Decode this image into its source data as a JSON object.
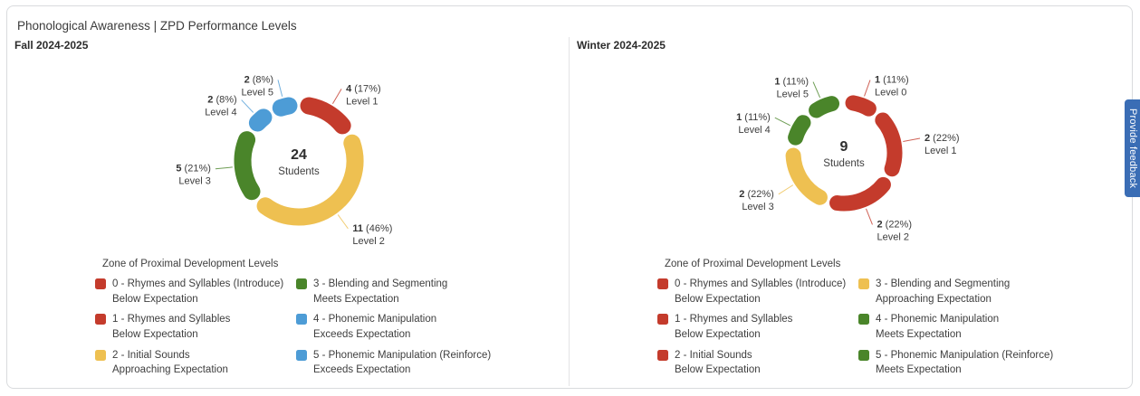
{
  "card": {
    "title": "Phonological Awareness | ZPD Performance Levels"
  },
  "feedback_tab": {
    "label": "Provide feedback",
    "color": "#3a6db5"
  },
  "colors": {
    "red": "#c43b2c",
    "yellow": "#eec051",
    "green": "#4a852a",
    "blue": "#4d9cd6"
  },
  "legend_title": "Zone of Proximal Development Levels",
  "chart_data": [
    {
      "type": "donut",
      "title": "Fall 2024-2025",
      "center_value": "24",
      "center_label": "Students",
      "total_students": 24,
      "segments": [
        {
          "level": "Level 1",
          "count": 4,
          "pct": 17,
          "color": "red"
        },
        {
          "level": "Level 2",
          "count": 11,
          "pct": 46,
          "color": "yellow"
        },
        {
          "level": "Level 3",
          "count": 5,
          "pct": 21,
          "color": "green"
        },
        {
          "level": "Level 4",
          "count": 2,
          "pct": 8,
          "color": "blue"
        },
        {
          "level": "Level 5",
          "count": 2,
          "pct": 8,
          "color": "blue"
        }
      ],
      "legend": [
        {
          "color": "red",
          "line1": "0 - Rhymes and Syllables (Introduce)",
          "line2": "Below Expectation"
        },
        {
          "color": "red",
          "line1": "1 - Rhymes and Syllables",
          "line2": "Below Expectation"
        },
        {
          "color": "yellow",
          "line1": "2 - Initial Sounds",
          "line2": "Approaching Expectation"
        },
        {
          "color": "green",
          "line1": "3 - Blending and Segmenting",
          "line2": "Meets Expectation"
        },
        {
          "color": "blue",
          "line1": "4 - Phonemic Manipulation",
          "line2": "Exceeds Expectation"
        },
        {
          "color": "blue",
          "line1": "5 - Phonemic Manipulation (Reinforce)",
          "line2": "Exceeds Expectation"
        }
      ]
    },
    {
      "type": "donut",
      "title": "Winter 2024-2025",
      "center_value": "9",
      "center_label": "Students",
      "total_students": 9,
      "segments": [
        {
          "level": "Level 0",
          "count": 1,
          "pct": 11,
          "color": "red"
        },
        {
          "level": "Level 1",
          "count": 2,
          "pct": 22,
          "color": "red"
        },
        {
          "level": "Level 2",
          "count": 2,
          "pct": 22,
          "color": "red"
        },
        {
          "level": "Level 3",
          "count": 2,
          "pct": 22,
          "color": "yellow"
        },
        {
          "level": "Level 4",
          "count": 1,
          "pct": 11,
          "color": "green"
        },
        {
          "level": "Level 5",
          "count": 1,
          "pct": 11,
          "color": "green"
        }
      ],
      "legend": [
        {
          "color": "red",
          "line1": "0 - Rhymes and Syllables (Introduce)",
          "line2": "Below Expectation"
        },
        {
          "color": "red",
          "line1": "1 - Rhymes and Syllables",
          "line2": "Below Expectation"
        },
        {
          "color": "red",
          "line1": "2 - Initial Sounds",
          "line2": "Below Expectation"
        },
        {
          "color": "yellow",
          "line1": "3 - Blending and Segmenting",
          "line2": "Approaching Expectation"
        },
        {
          "color": "green",
          "line1": "4 - Phonemic Manipulation",
          "line2": "Meets Expectation"
        },
        {
          "color": "green",
          "line1": "5 - Phonemic Manipulation (Reinforce)",
          "line2": "Meets Expectation"
        }
      ]
    }
  ]
}
